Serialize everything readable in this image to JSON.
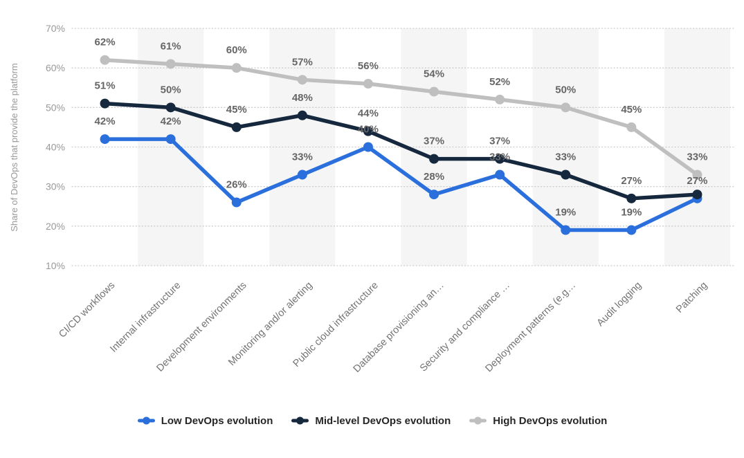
{
  "chart_data": {
    "type": "line",
    "title": "",
    "ylabel": "Share of DevOps that provide the platform",
    "xlabel": "",
    "ylim": [
      10,
      70
    ],
    "yticks": [
      "10%",
      "20%",
      "30%",
      "40%",
      "50%",
      "60%",
      "70%"
    ],
    "grid": "horizontal-dotted",
    "alternating_column_bands": true,
    "legend_position": "bottom-center",
    "categories": [
      "CI/CD workflows",
      "Internal infrastructure",
      "Development environments",
      "Monitoring and/or alerting",
      "Public cloud infrastructure",
      "Database provisioning an…",
      "Security and compliance …",
      "Deployment patterns (e.g…",
      "Audit logging",
      "Patching"
    ],
    "series": [
      {
        "name": "Low DevOps evolution",
        "color": "#2a6fdb",
        "values": [
          42,
          42,
          26,
          33,
          40,
          28,
          33,
          19,
          19,
          27
        ],
        "labels": [
          "42%",
          "42%",
          "26%",
          "33%",
          "40%",
          "28%",
          "33%",
          "19%",
          "19%",
          "27%"
        ]
      },
      {
        "name": "Mid-level DevOps evolution",
        "color": "#15283d",
        "values": [
          51,
          50,
          45,
          48,
          44,
          37,
          37,
          33,
          27,
          28
        ],
        "labels": [
          "51%",
          "50%",
          "45%",
          "48%",
          "44%",
          "37%",
          "37%",
          "33%",
          "27%",
          ""
        ]
      },
      {
        "name": "High DevOps evolution",
        "color": "#bfbfbf",
        "values": [
          62,
          61,
          60,
          57,
          56,
          54,
          52,
          50,
          45,
          33
        ],
        "labels": [
          "62%",
          "61%",
          "60%",
          "57%",
          "56%",
          "54%",
          "52%",
          "50%",
          "45%",
          "33%"
        ]
      }
    ]
  },
  "colors": {
    "background": "#ffffff",
    "band": "#f5f5f5",
    "gridline": "#cccccc",
    "data_label": "#666666",
    "tick_label": "#999999",
    "axis_title": "#999999",
    "category_label": "#737373",
    "legend_text": "#262626"
  }
}
